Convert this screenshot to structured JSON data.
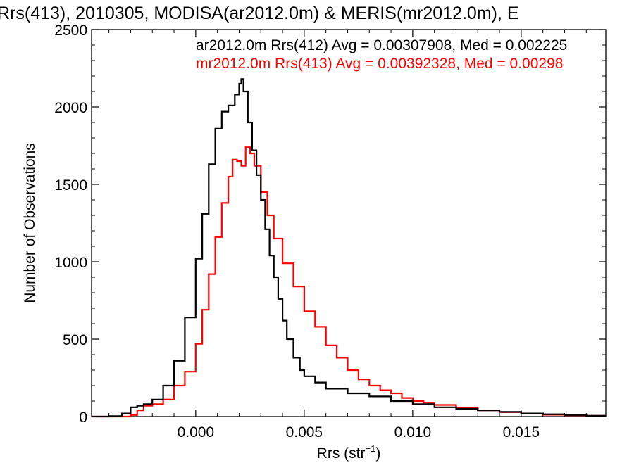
{
  "chart_data": {
    "type": "line",
    "title": "Rrs(413), 2010305, MODISA(ar2012.0m) & MERIS(mr2012.0m), E",
    "xlabel": "Rrs (str",
    "xlabel_sup": "−1",
    "xlabel_close": ")",
    "ylabel": "Number of Observations",
    "xlim": [
      -0.0048,
      0.0189
    ],
    "ylim": [
      0,
      2500
    ],
    "x_ticks": [
      {
        "value": 0.0,
        "label": "0.000"
      },
      {
        "value": 0.005,
        "label": "0.005"
      },
      {
        "value": 0.01,
        "label": "0.010"
      },
      {
        "value": 0.015,
        "label": "0.015"
      }
    ],
    "y_ticks": [
      {
        "value": 0,
        "label": "0"
      },
      {
        "value": 500,
        "label": "500"
      },
      {
        "value": 1000,
        "label": "1000"
      },
      {
        "value": 1500,
        "label": "1500"
      },
      {
        "value": 2000,
        "label": "2000"
      },
      {
        "value": 2500,
        "label": "2500"
      }
    ],
    "grid": false,
    "legend_position": "top-right",
    "series": [
      {
        "name": "ar2012.0m Rrs(412) Avg = 0.00307908, Med = 0.002225",
        "color": "#000000",
        "x": [
          -0.0048,
          -0.004,
          -0.0034,
          -0.003,
          -0.0027,
          -0.0024,
          -0.002,
          -0.0015,
          -0.001,
          -0.0005,
          0.0,
          0.0003,
          0.0006,
          0.0009,
          0.0012,
          0.0015,
          0.0018,
          0.002,
          0.0021,
          0.0022,
          0.0024,
          0.0026,
          0.0028,
          0.003,
          0.0032,
          0.0034,
          0.0036,
          0.0038,
          0.004,
          0.0042,
          0.0045,
          0.0048,
          0.005,
          0.0055,
          0.006,
          0.007,
          0.008,
          0.009,
          0.01,
          0.011,
          0.012,
          0.013,
          0.014,
          0.015,
          0.016,
          0.017,
          0.018,
          0.0189
        ],
        "y": [
          0,
          3,
          20,
          60,
          70,
          80,
          110,
          200,
          360,
          640,
          1020,
          1310,
          1630,
          1860,
          1970,
          2010,
          2080,
          2150,
          2180,
          2100,
          1900,
          1720,
          1560,
          1400,
          1210,
          1040,
          900,
          760,
          620,
          500,
          380,
          300,
          260,
          220,
          180,
          150,
          130,
          100,
          80,
          60,
          50,
          40,
          30,
          20,
          15,
          10,
          5,
          5
        ]
      },
      {
        "name": "mr2012.0m Rrs(413) Avg = 0.00392328, Med = 0.00298",
        "color": "#ff0000",
        "x": [
          -0.0048,
          -0.004,
          -0.0034,
          -0.003,
          -0.0027,
          -0.0024,
          -0.002,
          -0.0015,
          -0.001,
          -0.0005,
          0.0,
          0.0003,
          0.0006,
          0.0009,
          0.0012,
          0.0015,
          0.0017,
          0.0019,
          0.0021,
          0.0023,
          0.0025,
          0.0027,
          0.003,
          0.0033,
          0.0036,
          0.004,
          0.0045,
          0.005,
          0.0055,
          0.006,
          0.0065,
          0.007,
          0.0075,
          0.008,
          0.0085,
          0.009,
          0.0095,
          0.01,
          0.0105,
          0.011,
          0.012,
          0.013,
          0.014,
          0.015,
          0.016,
          0.017,
          0.018,
          0.0189
        ],
        "y": [
          0,
          0,
          0,
          10,
          40,
          70,
          80,
          110,
          200,
          290,
          470,
          690,
          920,
          1160,
          1380,
          1550,
          1660,
          1650,
          1620,
          1740,
          1700,
          1620,
          1450,
          1300,
          1150,
          990,
          840,
          680,
          580,
          460,
          380,
          300,
          240,
          200,
          170,
          150,
          120,
          100,
          90,
          75,
          55,
          40,
          28,
          20,
          12,
          8,
          5,
          5
        ]
      }
    ]
  }
}
